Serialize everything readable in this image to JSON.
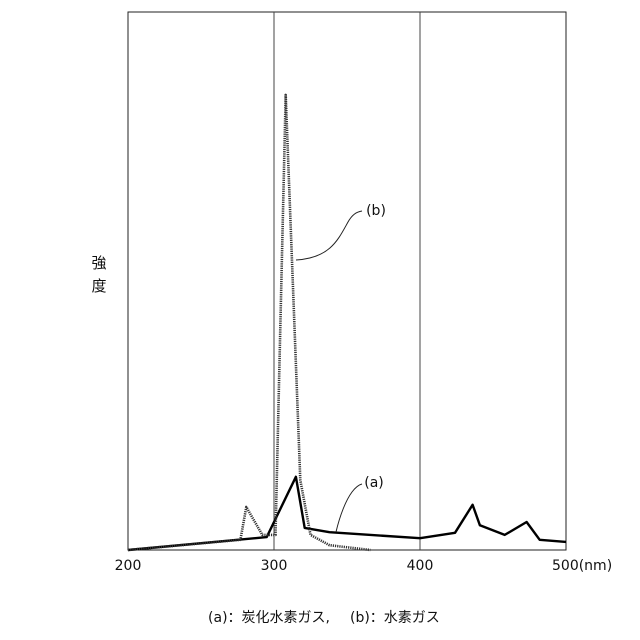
{
  "chart_data": {
    "type": "line",
    "ylabel": "強度",
    "xlim": [
      200,
      500
    ],
    "ylim": [
      0,
      100
    ],
    "xticks": [
      200,
      300,
      400,
      {
        "value": 500,
        "label": "500(nm)"
      }
    ],
    "grid": true,
    "series": [
      {
        "name": "(a)",
        "color": "#000000",
        "style": "solid",
        "x": [
          200,
          295,
          315,
          321,
          338,
          400,
          424,
          436,
          441,
          458,
          473,
          482,
          500
        ],
        "values": [
          0,
          2.4,
          13.6,
          4.1,
          3.3,
          2.2,
          3.2,
          8.4,
          4.6,
          2.8,
          5.2,
          1.9,
          1.5
        ]
      },
      {
        "name": "(b)",
        "color": "#333333",
        "style": "dotted",
        "x": [
          200,
          277,
          281,
          292,
          301,
          308,
          318,
          325,
          338,
          366
        ],
        "values": [
          0,
          1.9,
          8,
          2.8,
          2.8,
          84.6,
          13,
          2.8,
          0.9,
          0
        ]
      }
    ],
    "caption": [
      "(a)：炭化水素ガス,",
      "(b)：水素ガス"
    ]
  }
}
